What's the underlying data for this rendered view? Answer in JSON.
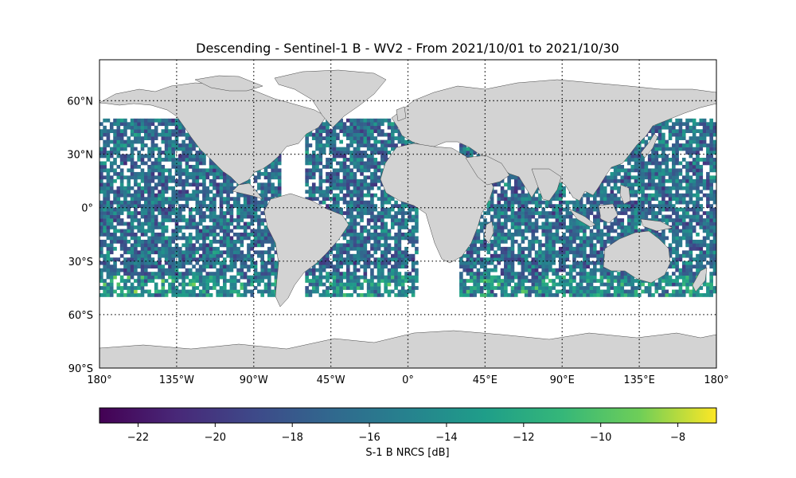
{
  "title": "Descending - Sentinel-1 B - WV2 - From 2021/10/01 to 2021/10/30",
  "map": {
    "projection": "PlateCarree",
    "lon_range": [
      -180,
      180
    ],
    "lat_range": [
      -90,
      90
    ],
    "land_color": "#d3d3d3",
    "coastline_color": "#444444",
    "gridlines": "dotted",
    "lat_ticks": [
      {
        "value": 60,
        "label": "60°N"
      },
      {
        "value": 30,
        "label": "30°N"
      },
      {
        "value": 0,
        "label": "0°"
      },
      {
        "value": -30,
        "label": "30°S"
      },
      {
        "value": -60,
        "label": "60°S"
      },
      {
        "value": -90,
        "label": "90°S"
      }
    ],
    "lon_ticks": [
      {
        "value": -180,
        "label": "180°"
      },
      {
        "value": -135,
        "label": "135°W"
      },
      {
        "value": -90,
        "label": "90°W"
      },
      {
        "value": -45,
        "label": "45°W"
      },
      {
        "value": 0,
        "label": "0°"
      },
      {
        "value": 45,
        "label": "45°E"
      },
      {
        "value": 90,
        "label": "90°E"
      },
      {
        "value": 135,
        "label": "135°E"
      },
      {
        "value": 180,
        "label": "180°"
      }
    ],
    "data_lat_extent": [
      -50,
      50
    ],
    "cell_size_deg": 2
  },
  "colorbar": {
    "label": "S-1 B NRCS [dB]",
    "colormap": "viridis",
    "range": [
      -23,
      -7
    ],
    "ticks": [
      {
        "value": -22,
        "label": "−22"
      },
      {
        "value": -20,
        "label": "−20"
      },
      {
        "value": -18,
        "label": "−18"
      },
      {
        "value": -16,
        "label": "−16"
      },
      {
        "value": -14,
        "label": "−14"
      },
      {
        "value": -12,
        "label": "−12"
      },
      {
        "value": -10,
        "label": "−10"
      },
      {
        "value": -8,
        "label": "−8"
      }
    ]
  }
}
